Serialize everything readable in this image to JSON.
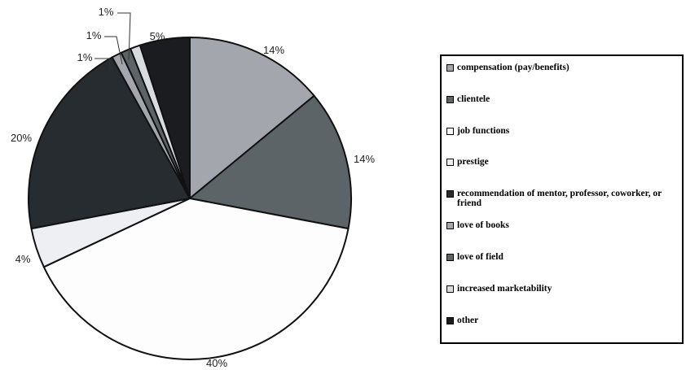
{
  "chart_data": {
    "type": "pie",
    "start_angle_deg": 0,
    "direction": "clockwise",
    "slices": [
      {
        "label": "compensation (pay/benefits)",
        "value": 14,
        "display": "14%",
        "color": "#a3a7ad"
      },
      {
        "label": "clientele",
        "value": 14,
        "display": "14%",
        "color": "#5c6467"
      },
      {
        "label": "job functions",
        "value": 40,
        "display": "40%",
        "color": "#fdfdfd"
      },
      {
        "label": "prestige",
        "value": 4,
        "display": "4%",
        "color": "#edeff3"
      },
      {
        "label": "recommendation of mentor, professor, coworker, or friend",
        "value": 20,
        "display": "20%",
        "color": "#272c30"
      },
      {
        "label": "love of books",
        "value": 1,
        "display": "1%",
        "color": "#a3a7ad"
      },
      {
        "label": "love of field",
        "value": 1,
        "display": "1%",
        "color": "#5c6467"
      },
      {
        "label": "increased marketability",
        "value": 1,
        "display": "1%",
        "color": "#d8dbe0"
      },
      {
        "label": "other",
        "value": 5,
        "display": "5%",
        "color": "#1a1c20"
      }
    ],
    "legend_position": "right"
  }
}
